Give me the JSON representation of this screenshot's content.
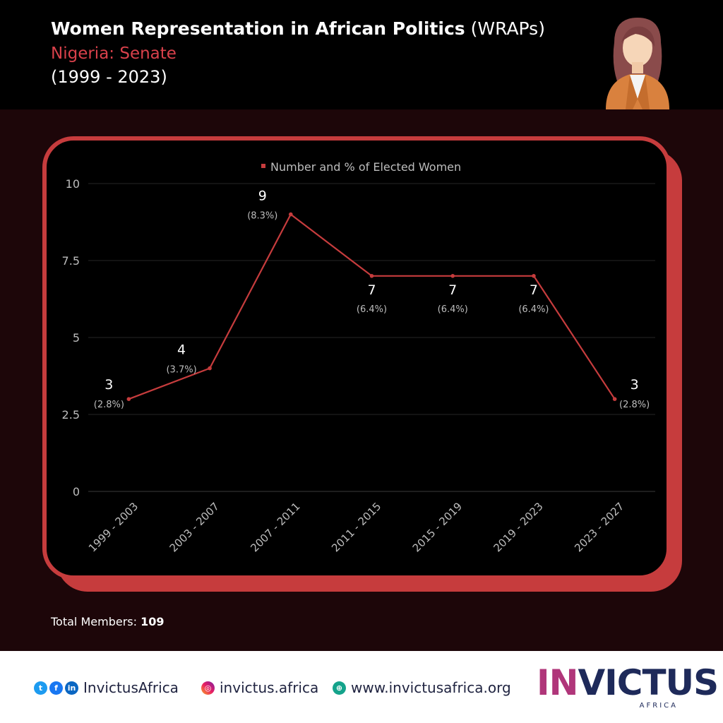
{
  "header": {
    "title_bold": "Women Representation in African Politics",
    "title_suffix": "(WRAPs)",
    "subtitle": "Nigeria: Senate",
    "years": "(1999 - 2023)"
  },
  "chart_data": {
    "type": "line",
    "categories": [
      "1999 - 2003",
      "2003 - 2007",
      "2007 - 2011",
      "2011 - 2015",
      "2015 - 2019",
      "2019 - 2023",
      "2023 - 2027"
    ],
    "series": [
      {
        "name": "Number and % of Elected Women",
        "values": [
          3,
          4,
          9,
          7,
          7,
          7,
          3
        ],
        "percent_labels": [
          "(2.8%)",
          "(3.7%)",
          "(8.3%)",
          "(6.4%)",
          "(6.4%)",
          "(6.4%)",
          "(2.8%)"
        ]
      }
    ],
    "ylim": [
      0,
      10
    ],
    "yticks": [
      0,
      2.5,
      5,
      7.5,
      10
    ],
    "ytick_labels": [
      "0",
      "2.5",
      "5",
      "7.5",
      "10"
    ],
    "grid": true,
    "legend": "top-center",
    "line_color": "#c63c3d"
  },
  "total": {
    "label": "Total Members: ",
    "value": "109"
  },
  "footer": {
    "social_handle": "InvictusAfrica",
    "instagram": "invictus.africa",
    "website": "www.invictusafrica.org",
    "brand_in": "IN",
    "brand_rest": "VICTUS",
    "brand_sub": "AFRICA",
    "icons": [
      "twitter-icon",
      "facebook-icon",
      "linkedin-icon",
      "instagram-icon",
      "globe-icon"
    ]
  },
  "colors": {
    "accent": "#c63c3d",
    "subtitle": "#d9414b",
    "background": "#1d0609",
    "brand": "#1e2a5a"
  }
}
